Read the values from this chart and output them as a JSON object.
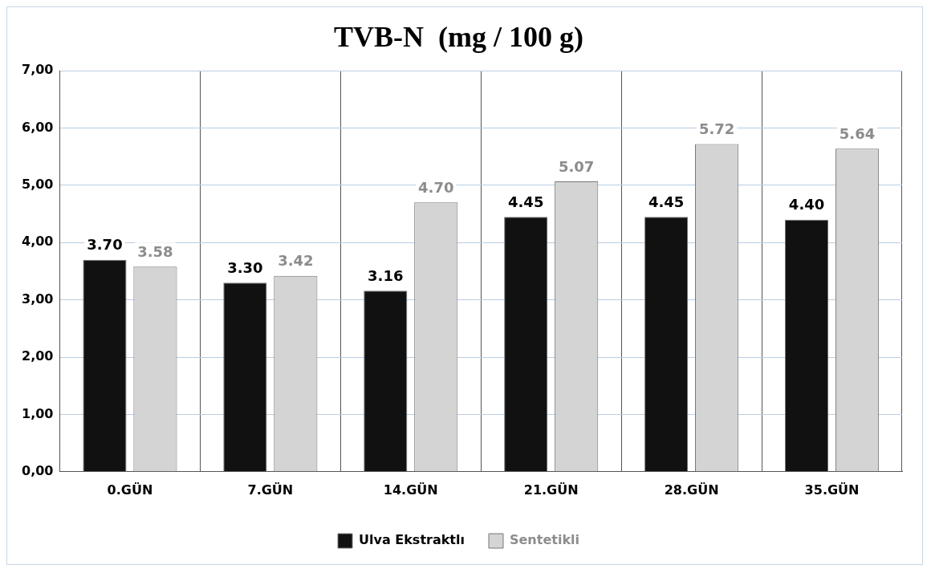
{
  "chart_data": {
    "type": "bar",
    "title": "TVB-N  (mg / 100 g)",
    "categories": [
      "0.GÜN",
      "7.GÜN",
      "14.GÜN",
      "21.GÜN",
      "28.GÜN",
      "35.GÜN"
    ],
    "series": [
      {
        "name": "Ulva Ekstraktlı",
        "color": "#111111",
        "values": [
          3.7,
          3.3,
          3.16,
          4.45,
          4.45,
          4.4
        ],
        "value_labels": [
          "3.70",
          "3.30",
          "3.16",
          "4.45",
          "4.45",
          "4.40"
        ]
      },
      {
        "name": "Sentetikli",
        "color": "#d4d4d4",
        "values": [
          3.58,
          3.42,
          4.7,
          5.07,
          5.72,
          5.64
        ],
        "value_labels": [
          "3.58",
          "3.42",
          "4.70",
          "5.07",
          "5.72",
          "5.64"
        ]
      }
    ],
    "ylim": [
      0,
      7
    ],
    "yticks": [
      {
        "value": 0,
        "label": "0,00"
      },
      {
        "value": 1,
        "label": "1,00"
      },
      {
        "value": 2,
        "label": "2,00"
      },
      {
        "value": 3,
        "label": "3,00"
      },
      {
        "value": 4,
        "label": "4,00"
      },
      {
        "value": 5,
        "label": "5,00"
      },
      {
        "value": 6,
        "label": "6,00"
      },
      {
        "value": 7,
        "label": "7,00"
      }
    ],
    "grid": true,
    "legend": "bottom"
  }
}
